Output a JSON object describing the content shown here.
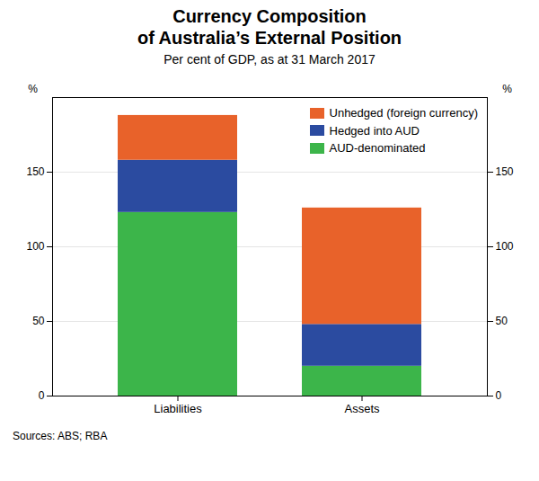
{
  "chart_data": {
    "type": "bar",
    "stacked": true,
    "title": "Currency Composition\nof Australia’s External Position",
    "subtitle": "Per cent of GDP, as at 31 March 2017",
    "ylabel": "%",
    "y2label": "%",
    "source": "Sources: ABS; RBA",
    "categories": [
      "Liabilities",
      "Assets"
    ],
    "series": [
      {
        "name": "AUD-denominated",
        "color": "#3CB54A",
        "values": [
          123,
          20
        ]
      },
      {
        "name": "Hedged into AUD",
        "color": "#2B4BA0",
        "values": [
          35,
          28
        ]
      },
      {
        "name": "Unhedged (foreign currency)",
        "color": "#E8622A",
        "values": [
          30,
          78
        ]
      }
    ],
    "ylim": [
      0,
      200
    ],
    "yticks": [
      0,
      50,
      100,
      150
    ],
    "y2lim": [
      0,
      200
    ],
    "y2ticks": [
      0,
      50,
      100,
      150
    ],
    "grid": true,
    "legend": "upper right"
  }
}
